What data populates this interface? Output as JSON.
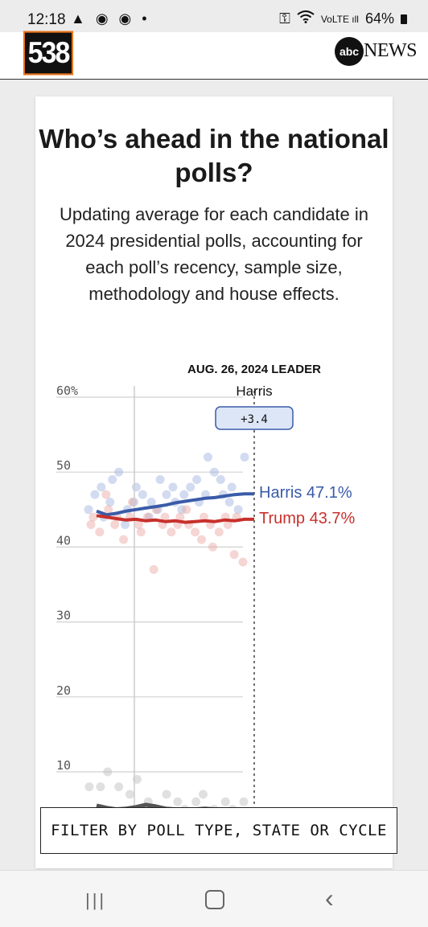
{
  "status_bar": {
    "time": "12:18",
    "left_icons": "▲ ◉ ◉ •",
    "battery": "64%"
  },
  "header": {
    "logo_text": "538",
    "abc_text": "abc",
    "news_text": "NEWS"
  },
  "card": {
    "title": "Who’s ahead in the national polls?",
    "subtitle": "Updating average for each candidate in 2024 presidential polls, accounting for each poll’s recency, sample size, methodology and house effects."
  },
  "chart_data": {
    "type": "line",
    "leader_date_label": "AUG. 26, 2024 LEADER",
    "leader_name": "Harris",
    "leader_margin": "+3.4",
    "y_ticks": [
      "60%",
      "50",
      "40",
      "30",
      "20",
      "10"
    ],
    "y_tick_values": [
      60,
      50,
      40,
      30,
      20,
      10
    ],
    "ylim": [
      0,
      60
    ],
    "grid": true,
    "series": [
      {
        "name": "Harris",
        "end_label": "Harris 47.1%",
        "color": "#3a5ba8",
        "values": [
          44.8,
          44.3,
          44.5,
          44.8,
          45.0,
          45.2,
          45.4,
          45.6,
          45.9,
          46.1,
          46.3,
          46.5,
          46.6,
          46.8,
          47.0,
          47.1,
          47.1
        ]
      },
      {
        "name": "Trump",
        "end_label": "Trump 43.7%",
        "color": "#c8302c",
        "values": [
          44.2,
          44.0,
          43.8,
          43.6,
          43.7,
          43.5,
          43.6,
          43.4,
          43.5,
          43.3,
          43.4,
          43.5,
          43.4,
          43.6,
          43.5,
          43.7,
          43.7
        ]
      },
      {
        "name": "",
        "end_label": "",
        "color": "#555555",
        "values": [
          5.5,
          5.2,
          5.0,
          5.1,
          5.3,
          5.6,
          5.4,
          5.1,
          5.0,
          4.9,
          5.0,
          5.1,
          5.0,
          4.8,
          4.9,
          5.0,
          5.0
        ]
      }
    ],
    "harris_polls": [
      45,
      47,
      48,
      44,
      46,
      49,
      50,
      43,
      45,
      46,
      48,
      47,
      44,
      46,
      45,
      49,
      47,
      48,
      46,
      45,
      47,
      48,
      49,
      46,
      47,
      52,
      50,
      49,
      47,
      46,
      48,
      45,
      52
    ],
    "trump_polls": [
      43,
      44,
      42,
      47,
      45,
      43,
      44,
      41,
      44,
      46,
      43,
      42,
      44,
      37,
      45,
      43,
      44,
      42,
      43,
      44,
      45,
      43,
      42,
      41,
      44,
      43,
      40,
      42,
      44,
      43,
      39,
      44,
      38
    ],
    "third_polls": [
      8,
      8,
      10,
      8,
      7,
      9,
      6,
      5,
      7,
      6,
      5,
      6,
      7,
      5,
      6,
      5,
      6
    ]
  },
  "filter_label": "FILTER BY POLL TYPE, STATE OR CYCLE",
  "nav": {
    "recent": "|||",
    "back": "‹"
  }
}
